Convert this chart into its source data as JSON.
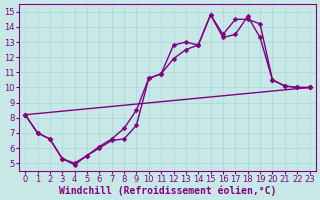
{
  "background_color": "#c8e8e8",
  "plot_bg_color": "#c8e8e8",
  "line_color": "#800080",
  "marker": "D",
  "markersize": 2.5,
  "linewidth": 1.0,
  "xlim": [
    -0.5,
    23.5
  ],
  "ylim": [
    4.5,
    15.5
  ],
  "xticks": [
    0,
    1,
    2,
    3,
    4,
    5,
    6,
    7,
    8,
    9,
    10,
    11,
    12,
    13,
    14,
    15,
    16,
    17,
    18,
    19,
    20,
    21,
    22,
    23
  ],
  "yticks": [
    5,
    6,
    7,
    8,
    9,
    10,
    11,
    12,
    13,
    14,
    15
  ],
  "xlabel": "Windchill (Refroidissement éolien,°C)",
  "xlabel_fontsize": 7.0,
  "tick_fontsize": 6.0,
  "grid_color": "#a8d8d8",
  "series": [
    {
      "x": [
        0,
        1,
        2,
        3,
        4,
        5,
        6,
        7,
        8,
        9,
        10,
        11,
        12,
        13,
        14,
        15,
        16,
        17,
        18,
        19,
        20,
        21,
        22,
        23
      ],
      "y": [
        8.2,
        7.0,
        6.6,
        5.3,
        5.0,
        5.5,
        6.0,
        6.5,
        6.6,
        7.5,
        10.6,
        10.9,
        12.8,
        13.0,
        12.8,
        14.8,
        13.3,
        13.5,
        14.7,
        13.3,
        10.5,
        10.1,
        10.0,
        10.0
      ]
    },
    {
      "x": [
        0,
        1,
        2,
        3,
        4,
        5,
        6,
        7,
        8,
        9,
        10,
        11,
        12,
        13,
        14,
        15,
        16,
        17,
        18,
        19,
        20,
        21,
        22,
        23
      ],
      "y": [
        8.2,
        7.0,
        6.6,
        5.3,
        4.9,
        5.5,
        6.1,
        6.6,
        7.3,
        8.5,
        10.6,
        10.9,
        11.9,
        12.5,
        12.8,
        14.8,
        13.5,
        14.5,
        14.5,
        14.2,
        10.5,
        10.1,
        10.0,
        10.0
      ]
    },
    {
      "x": [
        0,
        23
      ],
      "y": [
        8.2,
        10.0
      ]
    }
  ]
}
